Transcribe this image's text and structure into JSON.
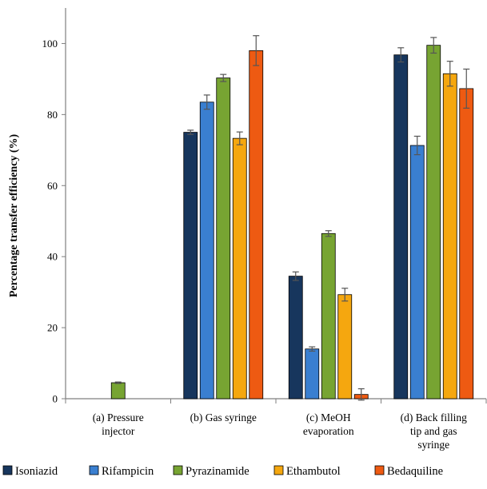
{
  "chart_data": {
    "type": "bar",
    "ylabel": "Percentage transfer efficiency (%)",
    "xlabel": "",
    "ylim": [
      0,
      110
    ],
    "yticks": [
      0,
      20,
      40,
      60,
      80,
      100
    ],
    "grid": false,
    "legend_position": "bottom",
    "categories": [
      [
        "(a) Pressure",
        "injector"
      ],
      [
        "(b) Gas syringe"
      ],
      [
        "(c) MeOH",
        "evaporation"
      ],
      [
        "(d) Back filling",
        "tip and gas",
        "syringe"
      ]
    ],
    "series": [
      {
        "name": "Isoniazid",
        "color": "#17365d",
        "values": [
          0,
          75.0,
          34.5,
          96.8
        ],
        "errors": [
          0,
          0.6,
          1.2,
          2.0
        ]
      },
      {
        "name": "Rifampicin",
        "color": "#3a7fd0",
        "values": [
          0,
          83.5,
          14.0,
          71.3
        ],
        "errors": [
          0,
          2.0,
          0.6,
          2.6
        ]
      },
      {
        "name": "Pyrazinamide",
        "color": "#77a432",
        "values": [
          4.5,
          90.3,
          46.5,
          99.5
        ],
        "errors": [
          0.2,
          1.0,
          0.8,
          2.2
        ]
      },
      {
        "name": "Ethambutol",
        "color": "#f5a70f",
        "values": [
          0,
          73.3,
          29.3,
          91.5
        ],
        "errors": [
          0,
          1.8,
          1.8,
          3.5
        ]
      },
      {
        "name": "Bedaquiline",
        "color": "#ee5a12",
        "values": [
          0,
          98.0,
          1.2,
          87.3
        ],
        "errors": [
          0,
          4.2,
          1.6,
          5.5
        ]
      }
    ]
  }
}
